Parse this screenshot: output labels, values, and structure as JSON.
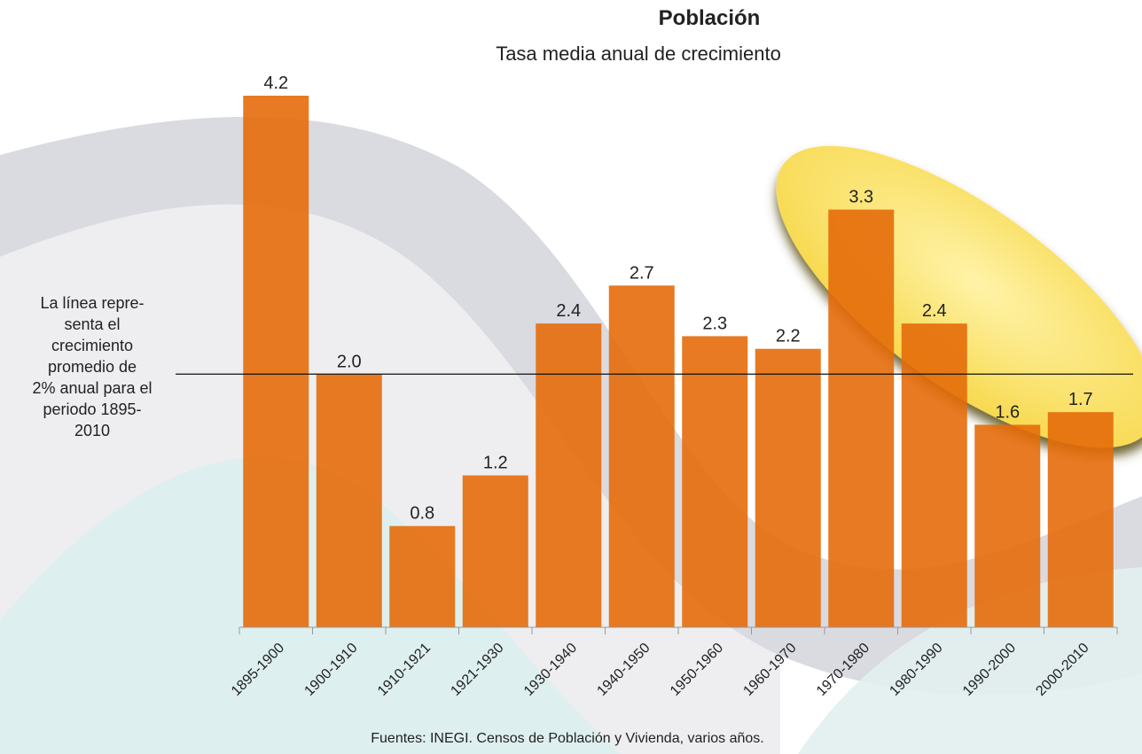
{
  "chart_data": {
    "type": "bar",
    "title": "Población",
    "subtitle": "Tasa media anual de crecimiento",
    "categories": [
      "1895-1900",
      "1900-1910",
      "1910-1921",
      "1921-1930",
      "1930-1940",
      "1940-1950",
      "1950-1960",
      "1960-1970",
      "1970-1980",
      "1980-1990",
      "1990-2000",
      "2000-2010"
    ],
    "values": [
      4.2,
      2,
      0.8,
      1.2,
      2.4,
      2.7,
      2.3,
      2.2,
      3.3,
      2.4,
      1.6,
      1.7
    ],
    "value_labels": [
      "4.2",
      "2.0",
      "0.8",
      "1.2",
      "2.4",
      "2.7",
      "2.3",
      "2.2",
      "3.3",
      "2.4",
      "1.6",
      "1.7"
    ],
    "color": "#e46c0a",
    "ylim": [
      0,
      4.2
    ],
    "reference_line": 2,
    "annotation": [
      "La línea repre-",
      "senta el",
      "crecimiento",
      "promedio  de",
      "2% anual para el",
      "periodo 1895-",
      "2010"
    ],
    "source": "Fuentes: INEGI. Censos de Población y Vivienda, varios años."
  }
}
